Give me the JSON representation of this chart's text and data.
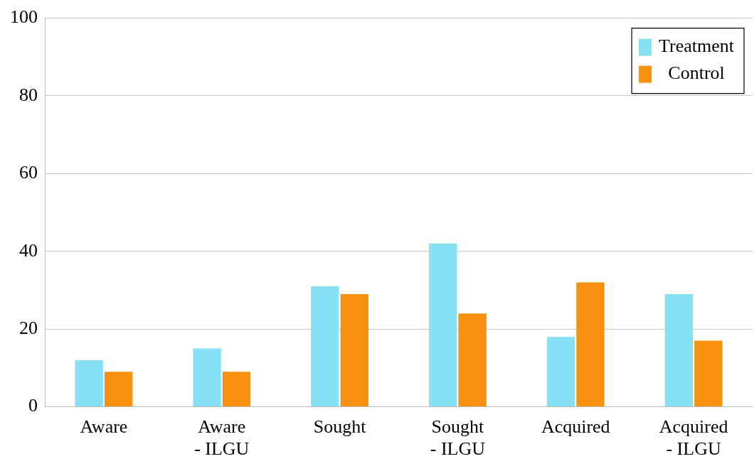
{
  "chart_data": {
    "type": "bar",
    "categories": [
      "Aware",
      "Aware\n- ILGU",
      "Sought",
      "Sought\n- ILGU",
      "Acquired",
      "Acquired\n- ILGU"
    ],
    "series": [
      {
        "name": "Treatment",
        "color": "#87e1f5",
        "values": [
          12,
          15,
          31,
          42,
          18,
          29
        ]
      },
      {
        "name": "Control",
        "color": "#f7910f",
        "values": [
          9,
          9,
          29,
          24,
          32,
          17
        ]
      }
    ],
    "ylim": [
      0,
      100
    ],
    "yticks": [
      0,
      20,
      40,
      60,
      80,
      100
    ],
    "grid": "y",
    "legend": "top right"
  }
}
